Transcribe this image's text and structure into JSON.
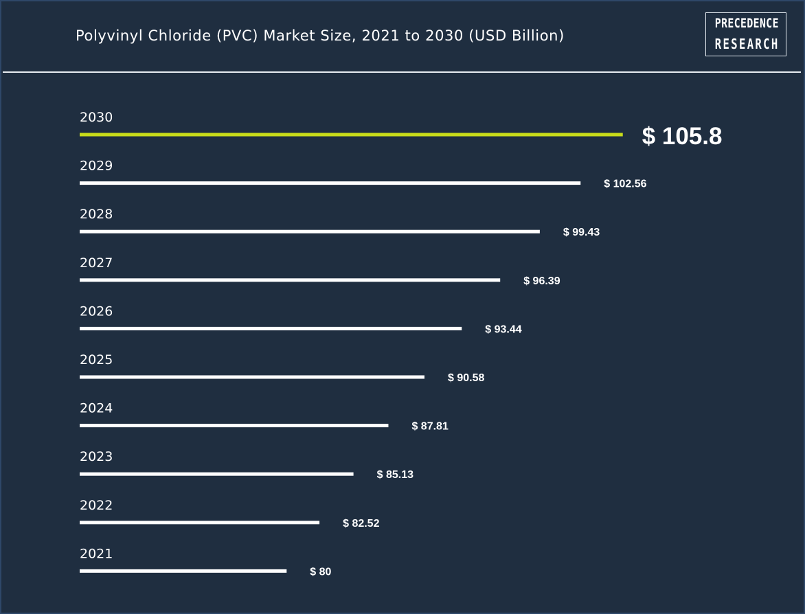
{
  "header": {
    "title": "Polyvinyl Chloride (PVC) Market Size, 2021 to 2030 (USD Billion)",
    "logo_line1": "PRECEDENCE",
    "logo_line2": "RESEARCH"
  },
  "colors": {
    "background": "#1f2e40",
    "bar": "#ffffff",
    "highlight_bar": "#c8dc1a",
    "text": "#ffffff"
  },
  "chart_data": {
    "type": "bar",
    "orientation": "horizontal",
    "title": "Polyvinyl Chloride (PVC) Market Size, 2021 to 2030 (USD Billion)",
    "categories": [
      "2030",
      "2029",
      "2028",
      "2027",
      "2026",
      "2025",
      "2024",
      "2023",
      "2022",
      "2021"
    ],
    "values": [
      105.8,
      102.56,
      99.43,
      96.39,
      93.44,
      90.58,
      87.81,
      85.13,
      82.52,
      80
    ],
    "value_labels": [
      "$ 105.8",
      "$ 102.56",
      "$ 99.43",
      "$ 96.39",
      "$ 93.44",
      "$ 90.58",
      "$ 87.81",
      "$ 85.13",
      "$ 82.52",
      "$ 80"
    ],
    "highlight_category": "2030",
    "xlabel": "",
    "ylabel": "",
    "grid": false,
    "legend": "none"
  }
}
